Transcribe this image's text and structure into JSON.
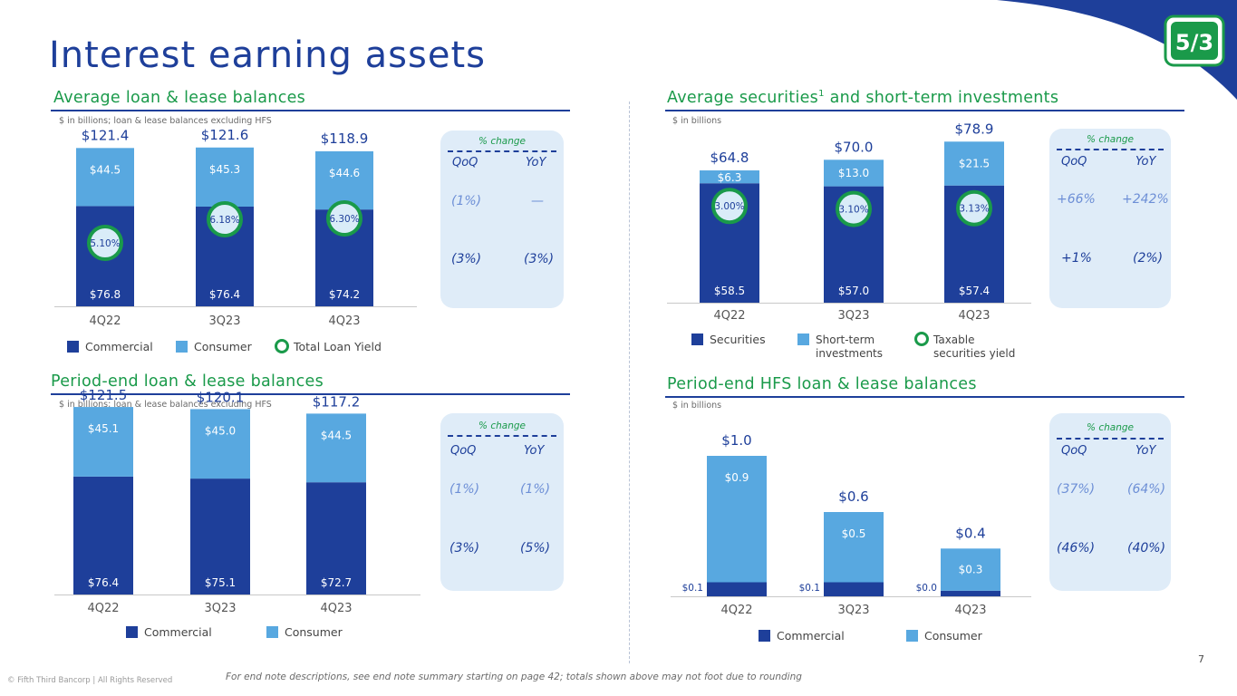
{
  "page": {
    "title": "Interest earning assets",
    "footer": "For end note descriptions, see end note summary starting on page 42; totals shown above may not foot due to rounding",
    "copyright": "© Fifth Third Bancorp | All Rights Reserved",
    "page_number": "7",
    "colors": {
      "dark_blue": "#1e3f9a",
      "light_blue": "#58a8e0",
      "green": "#1a9a4a",
      "box_bg": "#dfecf8"
    }
  },
  "sections": {
    "avg_loans": {
      "title": "Average loan & lease balances",
      "subtitle": "$ in billions; loan & lease balances excluding HFS"
    },
    "avg_securities": {
      "title": "Average securities",
      "footnote_mark": "1",
      "title_suffix": " and short-term investments",
      "subtitle": "$ in billions"
    },
    "pe_loans": {
      "title": "Period-end loan & lease balances",
      "subtitle": "$ in billions; loan & lease balances excluding HFS"
    },
    "pe_hfs": {
      "title": "Period-end HFS loan & lease balances",
      "subtitle": "$ in billions"
    }
  },
  "change_boxes": {
    "avg_loans": {
      "title": "% change",
      "qoq_label": "QoQ",
      "yoy_label": "YoY",
      "row1": {
        "qoq": "(1%)",
        "yoy": "—"
      },
      "row2": {
        "qoq": "(3%)",
        "yoy": "(3%)"
      }
    },
    "avg_securities": {
      "title": "% change",
      "qoq_label": "QoQ",
      "yoy_label": "YoY",
      "row1": {
        "qoq": "+66%",
        "yoy": "+242%"
      },
      "row2": {
        "qoq": "+1%",
        "yoy": "(2%)"
      }
    },
    "pe_loans": {
      "title": "% change",
      "qoq_label": "QoQ",
      "yoy_label": "YoY",
      "row1": {
        "qoq": "(1%)",
        "yoy": "(1%)"
      },
      "row2": {
        "qoq": "(3%)",
        "yoy": "(5%)"
      }
    },
    "pe_hfs": {
      "title": "% change",
      "qoq_label": "QoQ",
      "yoy_label": "YoY",
      "row1": {
        "qoq": "(37%)",
        "yoy": "(64%)"
      },
      "row2": {
        "qoq": "(46%)",
        "yoy": "(40%)"
      }
    }
  },
  "chart_data": [
    {
      "id": "avg_loans",
      "type": "bar",
      "stacked": true,
      "title": "Average loan & lease balances",
      "categories": [
        "4Q22",
        "3Q23",
        "4Q23"
      ],
      "series": [
        {
          "name": "Commercial",
          "values": [
            76.8,
            76.4,
            74.2
          ],
          "labels": [
            "$76.8",
            "$76.4",
            "$74.2"
          ]
        },
        {
          "name": "Consumer",
          "values": [
            44.5,
            45.3,
            44.6
          ],
          "labels": [
            "$44.5",
            "$45.3",
            "$44.6"
          ]
        }
      ],
      "totals": [
        "$121.4",
        "$121.6",
        "$118.9"
      ],
      "markers": {
        "name": "Total Loan Yield",
        "labels": [
          "5.10%",
          "6.18%",
          "6.30%"
        ],
        "values": [
          5.1,
          6.18,
          6.3
        ]
      },
      "legend": [
        "Commercial",
        "Consumer",
        "Total Loan Yield"
      ],
      "ylim": [
        0,
        150
      ]
    },
    {
      "id": "avg_securities",
      "type": "bar",
      "stacked": true,
      "title": "Average securities and short-term investments",
      "categories": [
        "4Q22",
        "3Q23",
        "4Q23"
      ],
      "series": [
        {
          "name": "Securities",
          "values": [
            58.5,
            57.0,
            57.4
          ],
          "labels": [
            "$58.5",
            "$57.0",
            "$57.4"
          ]
        },
        {
          "name": "Short-term investments",
          "values": [
            6.3,
            13.0,
            21.5
          ],
          "labels": [
            "$6.3",
            "$13.0",
            "$21.5"
          ]
        }
      ],
      "totals": [
        "$64.8",
        "$70.0",
        "$78.9"
      ],
      "markers": {
        "name": "Taxable securities yield",
        "labels": [
          "3.00%",
          "3.10%",
          "3.13%"
        ],
        "values": [
          3.0,
          3.1,
          3.13
        ]
      },
      "legend": [
        "Securities",
        "Short-term investments",
        "Taxable securities yield"
      ],
      "ylim": [
        0,
        95
      ]
    },
    {
      "id": "pe_loans",
      "type": "bar",
      "stacked": true,
      "title": "Period-end loan & lease balances",
      "categories": [
        "4Q22",
        "3Q23",
        "4Q23"
      ],
      "series": [
        {
          "name": "Commercial",
          "values": [
            76.4,
            75.1,
            72.7
          ],
          "labels": [
            "$76.4",
            "$75.1",
            "$72.7"
          ]
        },
        {
          "name": "Consumer",
          "values": [
            45.1,
            45.0,
            44.5
          ],
          "labels": [
            "$45.1",
            "$45.0",
            "$44.5"
          ]
        }
      ],
      "totals": [
        "$121.5",
        "$120.1",
        "$117.2"
      ],
      "legend": [
        "Commercial",
        "Consumer"
      ],
      "ylim": [
        0,
        128
      ]
    },
    {
      "id": "pe_hfs",
      "type": "bar",
      "stacked": true,
      "title": "Period-end HFS loan & lease balances",
      "categories": [
        "4Q22",
        "3Q23",
        "4Q23"
      ],
      "series": [
        {
          "name": "Commercial",
          "values": [
            0.1,
            0.1,
            0.04
          ],
          "labels": [
            "$0.1",
            "$0.1",
            "$0.0"
          ]
        },
        {
          "name": "Consumer",
          "values": [
            0.9,
            0.5,
            0.3
          ],
          "labels": [
            "$0.9",
            "$0.5",
            "$0.3"
          ]
        }
      ],
      "totals": [
        "$1.0",
        "$0.6",
        "$0.4"
      ],
      "legend": [
        "Commercial",
        "Consumer"
      ],
      "ylim": [
        0,
        1.2
      ]
    }
  ]
}
